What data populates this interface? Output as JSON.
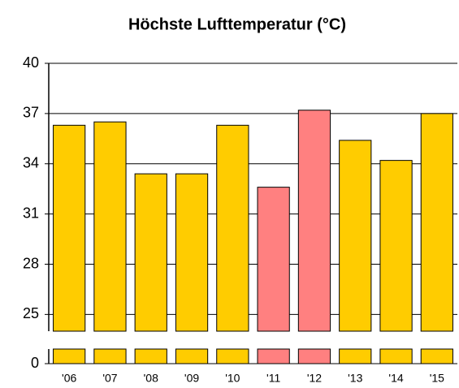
{
  "chart_data": {
    "type": "bar",
    "title": "Höchste Lufttemperatur (°C)",
    "categories": [
      "'06",
      "'07",
      "'08",
      "'09",
      "'10",
      "'11",
      "'12",
      "'13",
      "'14",
      "'15"
    ],
    "values": [
      36.3,
      36.5,
      33.4,
      33.4,
      36.3,
      32.6,
      37.2,
      35.4,
      34.2,
      37.0
    ],
    "colors": [
      "#ffcc00",
      "#ffcc00",
      "#ffcc00",
      "#ffcc00",
      "#ffcc00",
      "#ff8080",
      "#ff8080",
      "#ffcc00",
      "#ffcc00",
      "#ffcc00"
    ],
    "ylim": [
      0,
      40
    ],
    "yticks": [
      0,
      25,
      28,
      31,
      34,
      37,
      40
    ],
    "axis_break": 24,
    "grid": true
  }
}
